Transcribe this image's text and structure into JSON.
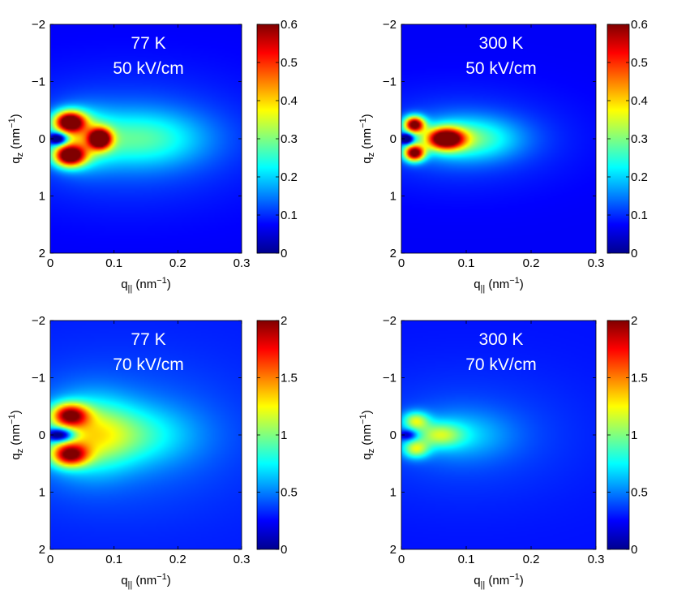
{
  "colormap": "jet",
  "colors": {
    "background": "#ffffff",
    "axis": "#000000",
    "annotation": "#ffffff",
    "jet": [
      "#00008f",
      "#0000ff",
      "#00ffff",
      "#ffff00",
      "#ff0000",
      "#800000"
    ]
  },
  "chart_data": [
    {
      "type": "heatmap",
      "title_lines": [
        "77 K",
        "50 kV/cm"
      ],
      "temperature": "77 K",
      "field": "50 kV/cm",
      "xlabel": "q",
      "xlabel_sub": "||",
      "xlabel_unit": " (nm",
      "xlabel_exp": "−1",
      "xlabel_close": ")",
      "ylabel": "q",
      "ylabel_sub": "z",
      "ylabel_unit": " (nm",
      "ylabel_exp": "−1",
      "ylabel_close": ")",
      "xlim": [
        0,
        0.3
      ],
      "ylim": [
        -2,
        2
      ],
      "y_inverted": true,
      "xticks": [
        0,
        0.1,
        0.2,
        0.3
      ],
      "xtick_labels": [
        "0",
        "0.1",
        "0.2",
        "0.3"
      ],
      "yticks": [
        -2,
        -1,
        0,
        1,
        2
      ],
      "ytick_labels": [
        "−2",
        "−1",
        "0",
        "1",
        "2"
      ],
      "colorbar_range": [
        0,
        0.6
      ],
      "colorbar_ticks": [
        0,
        0.1,
        0.2,
        0.3,
        0.4,
        0.5,
        0.6
      ],
      "colorbar_tick_labels": [
        "0",
        "0.1",
        "0.2",
        "0.3",
        "0.4",
        "0.5",
        "0.6"
      ],
      "background_level": 0.07,
      "features": [
        {
          "x": 0.03,
          "y": -0.3,
          "sx": 0.017,
          "sy": 0.13,
          "amp": 0.52
        },
        {
          "x": 0.03,
          "y": 0.3,
          "sx": 0.017,
          "sy": 0.13,
          "amp": 0.52
        },
        {
          "x": 0.078,
          "y": 0.0,
          "sx": 0.012,
          "sy": 0.12,
          "amp": 0.52
        },
        {
          "x": 0.05,
          "y": 0.0,
          "sx": 0.03,
          "sy": 0.32,
          "amp": 0.17
        },
        {
          "x": 0.14,
          "y": 0.0,
          "sx": 0.07,
          "sy": 0.34,
          "amp": 0.15
        },
        {
          "x": 0.12,
          "y": 0.0,
          "sx": 0.15,
          "sy": 0.8,
          "amp": 0.06
        }
      ],
      "dip": {
        "x": 0.012,
        "sx": 0.01,
        "sy": 0.07,
        "depth": 0.33
      }
    },
    {
      "type": "heatmap",
      "title_lines": [
        "300 K",
        "50 kV/cm"
      ],
      "temperature": "300 K",
      "field": "50 kV/cm",
      "xlabel": "q",
      "xlabel_sub": "||",
      "xlabel_unit": " (nm",
      "xlabel_exp": "−1",
      "xlabel_close": ")",
      "ylabel": "q",
      "ylabel_sub": "z",
      "ylabel_unit": " (nm",
      "ylabel_exp": "−1",
      "ylabel_close": ")",
      "xlim": [
        0,
        0.3
      ],
      "ylim": [
        -2,
        2
      ],
      "y_inverted": true,
      "xticks": [
        0,
        0.1,
        0.2,
        0.3
      ],
      "xtick_labels": [
        "0",
        "0.1",
        "0.2",
        "0.3"
      ],
      "yticks": [
        -2,
        -1,
        0,
        1,
        2
      ],
      "ytick_labels": [
        "−2",
        "−1",
        "0",
        "1",
        "2"
      ],
      "colorbar_range": [
        0,
        0.6
      ],
      "colorbar_ticks": [
        0,
        0.1,
        0.2,
        0.3,
        0.4,
        0.5,
        0.6
      ],
      "colorbar_tick_labels": [
        "0",
        "0.1",
        "0.2",
        "0.3",
        "0.4",
        "0.5",
        "0.6"
      ],
      "background_level": 0.07,
      "features": [
        {
          "x": 0.02,
          "y": -0.25,
          "sx": 0.011,
          "sy": 0.1,
          "amp": 0.52
        },
        {
          "x": 0.02,
          "y": 0.25,
          "sx": 0.011,
          "sy": 0.1,
          "amp": 0.52
        },
        {
          "x": 0.068,
          "y": 0.0,
          "sx": 0.02,
          "sy": 0.13,
          "amp": 0.52
        },
        {
          "x": 0.1,
          "y": 0.0,
          "sx": 0.055,
          "sy": 0.26,
          "amp": 0.18
        },
        {
          "x": 0.09,
          "y": 0.0,
          "sx": 0.12,
          "sy": 0.6,
          "amp": 0.05
        }
      ],
      "dip": {
        "x": 0.008,
        "sx": 0.007,
        "sy": 0.06,
        "depth": 0.3
      }
    },
    {
      "type": "heatmap",
      "title_lines": [
        "77 K",
        "70 kV/cm"
      ],
      "temperature": "77 K",
      "field": "70 kV/cm",
      "xlabel": "q",
      "xlabel_sub": "||",
      "xlabel_unit": " (nm",
      "xlabel_exp": "−1",
      "xlabel_close": ")",
      "ylabel": "q",
      "ylabel_sub": "z",
      "ylabel_unit": " (nm",
      "ylabel_exp": "−1",
      "ylabel_close": ")",
      "xlim": [
        0,
        0.3
      ],
      "ylim": [
        -2,
        2
      ],
      "y_inverted": true,
      "xticks": [
        0,
        0.1,
        0.2,
        0.3
      ],
      "xtick_labels": [
        "0",
        "0.1",
        "0.2",
        "0.3"
      ],
      "yticks": [
        -2,
        -1,
        0,
        1,
        2
      ],
      "ytick_labels": [
        "−2",
        "−1",
        "0",
        "1",
        "2"
      ],
      "colorbar_range": [
        0,
        2
      ],
      "colorbar_ticks": [
        0,
        0.5,
        1,
        1.5,
        2
      ],
      "colorbar_tick_labels": [
        "0",
        "0.5",
        "1",
        "1.5",
        "2"
      ],
      "background_level": 0.3,
      "features": [
        {
          "x": 0.03,
          "y": -0.35,
          "sx": 0.02,
          "sy": 0.14,
          "amp": 1.3
        },
        {
          "x": 0.03,
          "y": 0.35,
          "sx": 0.02,
          "sy": 0.14,
          "amp": 1.3
        },
        {
          "x": 0.06,
          "y": 0.0,
          "sx": 0.045,
          "sy": 0.45,
          "amp": 0.55
        },
        {
          "x": 0.12,
          "y": 0.0,
          "sx": 0.07,
          "sy": 0.36,
          "amp": 0.4
        },
        {
          "x": 0.11,
          "y": 0.0,
          "sx": 0.14,
          "sy": 0.9,
          "amp": 0.18
        }
      ],
      "dip": {
        "x": 0.015,
        "sx": 0.015,
        "sy": 0.08,
        "depth": 1.05
      }
    },
    {
      "type": "heatmap",
      "title_lines": [
        "300 K",
        "70 kV/cm"
      ],
      "temperature": "300 K",
      "field": "70 kV/cm",
      "xlabel": "q",
      "xlabel_sub": "||",
      "xlabel_unit": " (nm",
      "xlabel_exp": "−1",
      "xlabel_close": ")",
      "ylabel": "q",
      "ylabel_sub": "z",
      "ylabel_unit": " (nm",
      "ylabel_exp": "−1",
      "ylabel_close": ")",
      "xlim": [
        0,
        0.3
      ],
      "ylim": [
        -2,
        2
      ],
      "y_inverted": true,
      "xticks": [
        0,
        0.1,
        0.2,
        0.3
      ],
      "xtick_labels": [
        "0",
        "0.1",
        "0.2",
        "0.3"
      ],
      "yticks": [
        -2,
        -1,
        0,
        1,
        2
      ],
      "ytick_labels": [
        "−2",
        "−1",
        "0",
        "1",
        "2"
      ],
      "colorbar_range": [
        0,
        2
      ],
      "colorbar_ticks": [
        0,
        0.5,
        1,
        1.5,
        2
      ],
      "colorbar_tick_labels": [
        "0",
        "0.5",
        "1",
        "1.5",
        "2"
      ],
      "background_level": 0.28,
      "features": [
        {
          "x": 0.022,
          "y": -0.25,
          "sx": 0.014,
          "sy": 0.11,
          "amp": 0.7
        },
        {
          "x": 0.022,
          "y": 0.25,
          "sx": 0.014,
          "sy": 0.11,
          "amp": 0.7
        },
        {
          "x": 0.058,
          "y": 0.0,
          "sx": 0.025,
          "sy": 0.15,
          "amp": 0.55
        },
        {
          "x": 0.09,
          "y": 0.0,
          "sx": 0.055,
          "sy": 0.3,
          "amp": 0.28
        },
        {
          "x": 0.1,
          "y": 0.0,
          "sx": 0.13,
          "sy": 0.8,
          "amp": 0.12
        }
      ],
      "dip": {
        "x": 0.01,
        "sx": 0.01,
        "sy": 0.06,
        "depth": 0.5
      }
    }
  ]
}
